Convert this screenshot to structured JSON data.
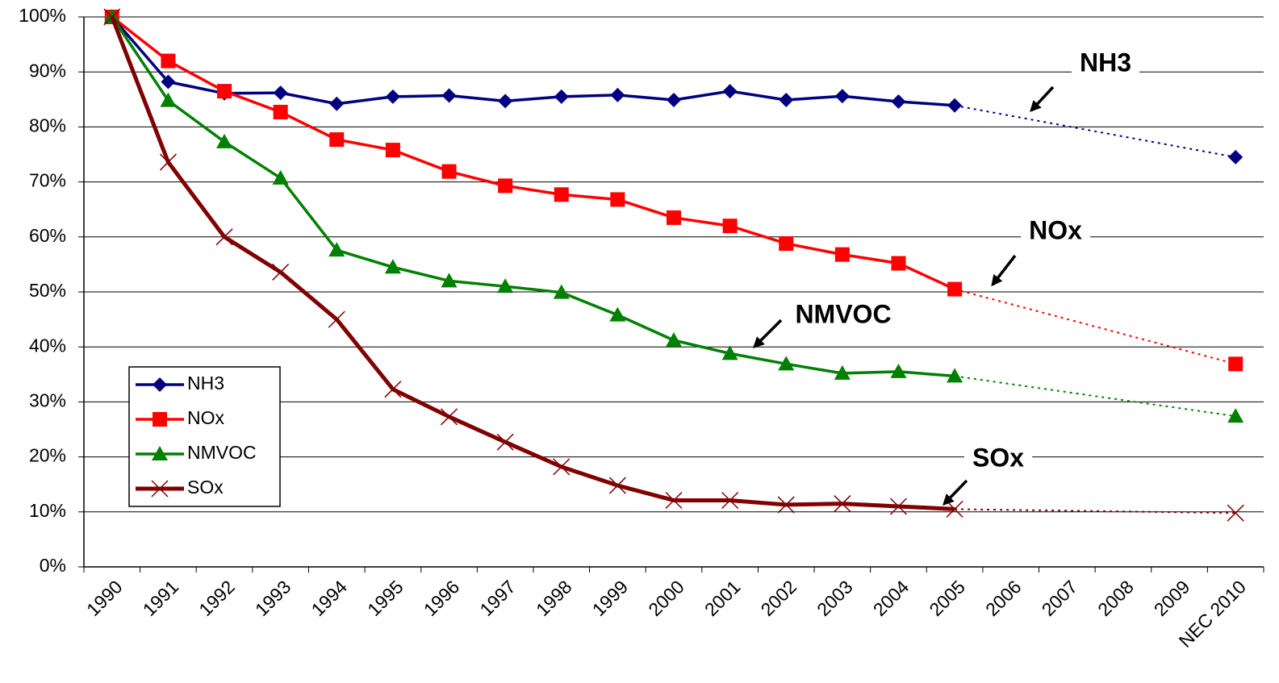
{
  "chart_data": {
    "type": "line",
    "categories": [
      "1990",
      "1991",
      "1992",
      "1993",
      "1994",
      "1995",
      "1996",
      "1997",
      "1998",
      "1999",
      "2000",
      "2001",
      "2002",
      "2003",
      "2004",
      "2005",
      "2006",
      "2007",
      "2008",
      "2009",
      "NEC 2010"
    ],
    "series": [
      {
        "name": "NH3",
        "color": "#000080",
        "marker": "diamond",
        "values": [
          100,
          88.2,
          86.1,
          86.2,
          84.2,
          85.5,
          85.7,
          84.7,
          85.5,
          85.8,
          84.9,
          86.5,
          84.9,
          85.6,
          84.6,
          83.9,
          null,
          null,
          null,
          null,
          74.5
        ]
      },
      {
        "name": "NOx",
        "color": "#ff0000",
        "marker": "square",
        "values": [
          100,
          92,
          86.5,
          82.7,
          77.7,
          75.8,
          71.9,
          69.3,
          67.7,
          66.8,
          63.5,
          62,
          58.8,
          56.8,
          55.2,
          50.5,
          null,
          null,
          null,
          null,
          36.9
        ]
      },
      {
        "name": "NMVOC",
        "color": "#008000",
        "marker": "triangle",
        "values": [
          100,
          84.8,
          77.3,
          70.7,
          57.6,
          54.5,
          52.0,
          51.0,
          49.9,
          45.8,
          41.2,
          38.8,
          36.9,
          35.2,
          35.5,
          34.7,
          null,
          null,
          null,
          null,
          27.4
        ]
      },
      {
        "name": "SOx",
        "color": "#800000",
        "marker": "x",
        "values": [
          100,
          73.6,
          60.0,
          53.6,
          45.0,
          32.3,
          27.3,
          22.7,
          18.2,
          14.8,
          12.1,
          12.1,
          11.3,
          11.5,
          11.0,
          10.5,
          null,
          null,
          null,
          null,
          9.8
        ]
      }
    ],
    "ylim": [
      0,
      100
    ],
    "yticks": [
      {
        "value": 0,
        "label": "0%"
      },
      {
        "value": 10,
        "label": "10%"
      },
      {
        "value": 20,
        "label": "20%"
      },
      {
        "value": 30,
        "label": "30%"
      },
      {
        "value": 40,
        "label": "40%"
      },
      {
        "value": 50,
        "label": "50%"
      },
      {
        "value": 60,
        "label": "60%"
      },
      {
        "value": 70,
        "label": "70%"
      },
      {
        "value": 80,
        "label": "80%"
      },
      {
        "value": 90,
        "label": "90%"
      },
      {
        "value": 100,
        "label": "100%"
      }
    ],
    "grid": true,
    "legend": "lower left",
    "annotations": [
      {
        "text": "NH3"
      },
      {
        "text": "NOx"
      },
      {
        "text": "NMVOC"
      },
      {
        "text": "SOx"
      }
    ]
  }
}
